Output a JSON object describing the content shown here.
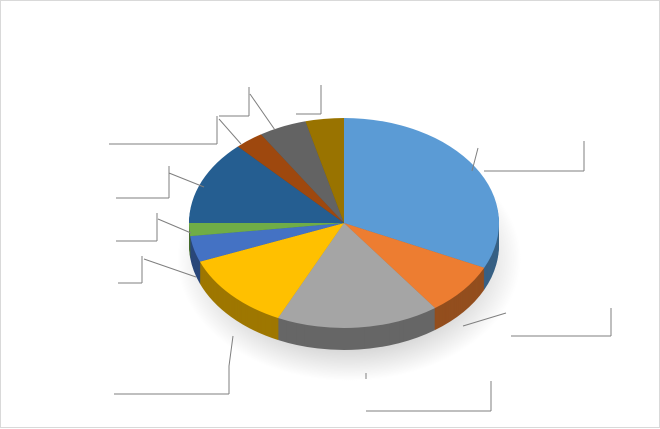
{
  "chart_data": {
    "type": "pie",
    "style": "3d",
    "title": "",
    "start_angle_deg": 0,
    "direction": "clockwise",
    "data_labels_visible": false,
    "legend": "none",
    "values": [
      32,
      8,
      17,
      12,
      4,
      2,
      13,
      3,
      5,
      4
    ],
    "colors": [
      "#5b9bd5",
      "#ed7d31",
      "#a5a5a5",
      "#ffc000",
      "#4472c4",
      "#70ad47",
      "#255e91",
      "#9e480e",
      "#636363",
      "#997300"
    ]
  }
}
